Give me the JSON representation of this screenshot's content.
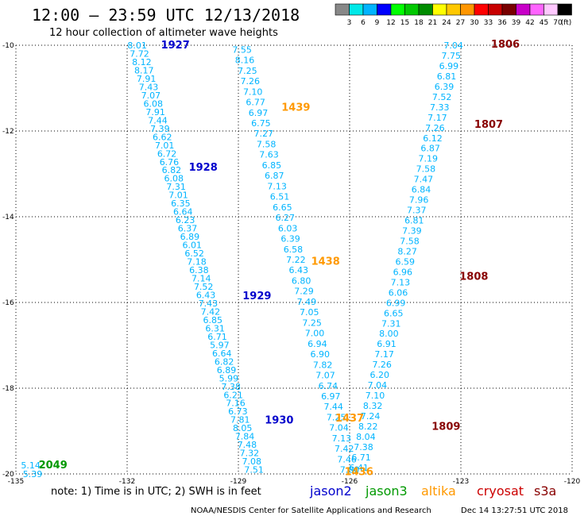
{
  "header": {
    "title": "12:00 – 23:59 UTC 12/13/2018",
    "subtitle": "12 hour collection of altimeter wave heights"
  },
  "scale": {
    "labels": [
      "3",
      "6",
      "9",
      "12",
      "15",
      "18",
      "21",
      "24",
      "27",
      "30",
      "33",
      "36",
      "39",
      "42",
      "45",
      "70"
    ],
    "unit": "(ft)",
    "colors": [
      "#888888",
      "#00e8e8",
      "#00b4ff",
      "#0000ff",
      "#00ff00",
      "#00c800",
      "#008c00",
      "#ffff00",
      "#ffc800",
      "#ff9600",
      "#ff0000",
      "#c80000",
      "#780000",
      "#c800c8",
      "#ff64ff",
      "#ffc8ff",
      "#000000"
    ]
  },
  "note": {
    "text": "note:  1) Time is in UTC;  2) SWH is in feet",
    "satellites": [
      {
        "name": "jason2",
        "color": "#0000cc"
      },
      {
        "name": "jason3",
        "color": "#009900"
      },
      {
        "name": "altika",
        "color": "#ff9900"
      },
      {
        "name": "cryosat",
        "color": "#cc0000"
      },
      {
        "name": "s3a",
        "color": "#880000"
      }
    ]
  },
  "footer": {
    "source": "NOAA/NESDIS Center for Satellite Applications and Research",
    "stamp": "Dec 14 13:27:51 UTC 2018"
  },
  "chart_data": {
    "type": "scatter",
    "xlim": [
      -135,
      -120
    ],
    "ylim": [
      -20,
      -10
    ],
    "x_ticks": [
      "-135",
      "-132",
      "-129",
      "-126",
      "-123",
      "-120"
    ],
    "y_ticks": [
      "-10",
      "-12",
      "-14",
      "-16",
      "-18",
      "-20"
    ],
    "value_color": "#00b4ff",
    "tracks": [
      {
        "x_start": -131.73,
        "y_start": -10.0,
        "x_end": -128.58,
        "y_end": -19.9,
        "values": [
          "8.01",
          "7.72",
          "8.12",
          "8.17",
          "7.91",
          "7.43",
          "7.07",
          "6.08",
          "7.91",
          "7.44",
          "7.39",
          "6.62",
          "7.01",
          "6.72",
          "6.76",
          "6.82",
          "6.08",
          "7.31",
          "7.01",
          "6.35",
          "6.64",
          "6.23",
          "6.37",
          "6.89",
          "6.01",
          "6.52",
          "7.18",
          "6.38",
          "7.14",
          "7.52",
          "6.43",
          "7.43",
          "7.42",
          "6.85",
          "6.31",
          "6.71",
          "5.97",
          "6.64",
          "6.82",
          "6.89",
          "5.99",
          "7.38",
          "6.21",
          "7.16",
          "6.73",
          "7.81",
          "8.05",
          "7.84",
          "7.48",
          "7.32",
          "7.08",
          "7.51"
        ]
      },
      {
        "x_start": -128.9,
        "y_start": -10.1,
        "x_end": -126.0,
        "y_end": -19.9,
        "values": [
          "7.55",
          "8.16",
          "7.25",
          "7.26",
          "7.10",
          "6.77",
          "6.97",
          "6.75",
          "7.27",
          "7.58",
          "7.63",
          "6.85",
          "6.87",
          "7.13",
          "6.51",
          "6.65",
          "6.27",
          "6.03",
          "6.39",
          "6.58",
          "7.22",
          "6.43",
          "6.80",
          "7.29",
          "7.49",
          "7.05",
          "7.25",
          "7.00",
          "6.94",
          "6.90",
          "7.82",
          "7.07",
          "6.74",
          "6.97",
          "7.44",
          "7.25",
          "7.04",
          "7.13",
          "7.42",
          "7.46",
          "7.80"
        ]
      },
      {
        "x_start": -123.2,
        "y_start": -10.0,
        "x_end": -125.75,
        "y_end": -19.85,
        "values": [
          "7.04",
          "7.75",
          "6.99",
          "6.81",
          "6.39",
          "7.52",
          "7.33",
          "7.17",
          "7.26",
          "6.12",
          "6.87",
          "7.19",
          "7.58",
          "7.47",
          "6.84",
          "7.96",
          "7.37",
          "6.81",
          "7.39",
          "7.58",
          "8.27",
          "6.59",
          "6.96",
          "7.13",
          "6.06",
          "6.99",
          "6.65",
          "7.31",
          "8.00",
          "6.91",
          "7.17",
          "7.26",
          "6.20",
          "7.04",
          "7.10",
          "8.32",
          "7.24",
          "8.22",
          "8.04",
          "7.38",
          "6.71",
          "6.41"
        ]
      },
      {
        "x_start": -134.6,
        "y_start": -19.8,
        "x_end": -134.55,
        "y_end": -20.0,
        "values": [
          "5.14",
          "5.39"
        ]
      }
    ],
    "time_labels": [
      {
        "text": "1927",
        "x": -130.7,
        "y": -10.0,
        "color": "#0000cc"
      },
      {
        "text": "1928",
        "x": -129.95,
        "y": -12.85,
        "color": "#0000cc"
      },
      {
        "text": "1929",
        "x": -128.5,
        "y": -15.85,
        "color": "#0000cc"
      },
      {
        "text": "1930",
        "x": -127.9,
        "y": -18.75,
        "color": "#0000cc"
      },
      {
        "text": "1439",
        "x": -127.45,
        "y": -11.45,
        "color": "#ff9900"
      },
      {
        "text": "1438",
        "x": -126.65,
        "y": -15.05,
        "color": "#ff9900"
      },
      {
        "text": "1437",
        "x": -126.0,
        "y": -18.7,
        "color": "#ff9900"
      },
      {
        "text": "1436",
        "x": -125.75,
        "y": -19.95,
        "color": "#ff9900"
      },
      {
        "text": "1806",
        "x": -121.8,
        "y": -9.98,
        "color": "#880000"
      },
      {
        "text": "1807",
        "x": -122.25,
        "y": -11.85,
        "color": "#880000"
      },
      {
        "text": "1808",
        "x": -122.65,
        "y": -15.4,
        "color": "#880000"
      },
      {
        "text": "1809",
        "x": -123.4,
        "y": -18.9,
        "color": "#880000"
      },
      {
        "text": "2049",
        "x": -134.0,
        "y": -19.8,
        "color": "#009900"
      }
    ]
  }
}
